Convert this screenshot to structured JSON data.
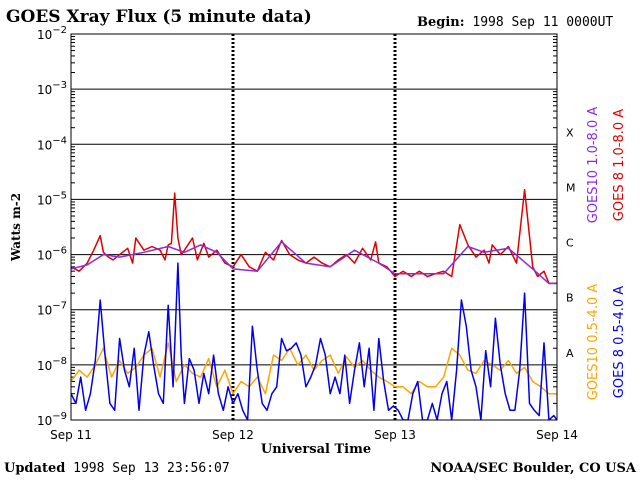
{
  "header": {
    "title": "GOES Xray Flux (5 minute data)",
    "begin_label": "Begin:",
    "begin_value": "1998 Sep 11 0000UT"
  },
  "footer": {
    "updated_label": "Updated",
    "updated_value": "1998 Sep 13 23:56:07",
    "credit": "NOAA/SEC Boulder, CO USA"
  },
  "colors": {
    "goes10_long": "#8a2be2",
    "goes8_long": "#e00000",
    "goes10_short": "#ffa500",
    "goes8_short": "#0000ee"
  },
  "chart_data": {
    "type": "line",
    "ylabel": "Watts m-2",
    "xlabel": "Universal Time",
    "yscale": "log",
    "ylim_exp": [
      -9,
      -2
    ],
    "ytick_exps": [
      -9,
      -8,
      -7,
      -6,
      -5,
      -4,
      -3,
      -2
    ],
    "flare_classes": [
      {
        "label": "A",
        "exp": -8
      },
      {
        "label": "B",
        "exp": -7
      },
      {
        "label": "C",
        "exp": -6
      },
      {
        "label": "M",
        "exp": -5
      },
      {
        "label": "X",
        "exp": -4
      }
    ],
    "x_range_days": [
      0,
      3
    ],
    "xticks": [
      {
        "day": 0,
        "label": "Sep 11"
      },
      {
        "day": 1,
        "label": "Sep 12"
      },
      {
        "day": 2,
        "label": "Sep 13"
      },
      {
        "day": 3,
        "label": "Sep 14"
      }
    ],
    "legend": [
      {
        "label": "GOES10 1.0-8.0 A",
        "color": "#8a2be2"
      },
      {
        "label": "GOES 8 1.0-8.0 A",
        "color": "#e00000"
      },
      {
        "label": "GOES10 0.5-4.0 A",
        "color": "#ffa500"
      },
      {
        "label": "GOES 8 0.5-4.0 A",
        "color": "#0000ee"
      }
    ],
    "series": [
      {
        "name": "GOES 8 1.0-8.0 A",
        "color": "#e00000",
        "x": [
          0,
          0.05,
          0.1,
          0.14,
          0.18,
          0.2,
          0.23,
          0.26,
          0.3,
          0.35,
          0.38,
          0.4,
          0.45,
          0.5,
          0.55,
          0.58,
          0.6,
          0.62,
          0.64,
          0.66,
          0.68,
          0.7,
          0.75,
          0.78,
          0.82,
          0.85,
          0.9,
          0.95,
          1.0,
          1.05,
          1.1,
          1.15,
          1.2,
          1.25,
          1.3,
          1.35,
          1.4,
          1.45,
          1.5,
          1.55,
          1.6,
          1.65,
          1.7,
          1.75,
          1.8,
          1.85,
          1.88,
          1.9,
          1.95,
          2.0,
          2.05,
          2.1,
          2.15,
          2.2,
          2.25,
          2.3,
          2.35,
          2.4,
          2.45,
          2.5,
          2.55,
          2.58,
          2.6,
          2.65,
          2.7,
          2.75,
          2.8,
          2.85,
          2.88,
          2.92,
          2.95,
          3.0
        ],
        "y": [
          6e-07,
          5e-07,
          7e-07,
          1.2e-06,
          2.2e-06,
          1.1e-06,
          9e-07,
          8e-07,
          1e-06,
          1.3e-06,
          7e-07,
          2e-06,
          1.2e-06,
          1.4e-06,
          1.2e-06,
          8e-07,
          1.5e-06,
          1.6e-06,
          1.3e-05,
          2e-06,
          1e-06,
          1.2e-06,
          2e-06,
          8e-07,
          1.6e-06,
          9e-07,
          1.2e-06,
          7e-07,
          6e-07,
          1e-06,
          6e-07,
          5e-07,
          1.1e-06,
          8e-07,
          1.8e-06,
          1e-06,
          8e-07,
          7e-07,
          9e-07,
          7e-07,
          6e-07,
          8e-07,
          1e-06,
          7e-07,
          1.3e-06,
          8e-07,
          1.7e-06,
          7e-07,
          6e-07,
          4e-07,
          5e-07,
          4e-07,
          5e-07,
          4e-07,
          4.5e-07,
          5e-07,
          4e-07,
          3.5e-06,
          1.5e-06,
          9e-07,
          1.2e-06,
          7e-07,
          1.5e-06,
          1e-06,
          1.4e-06,
          7e-07,
          1.5e-05,
          6e-07,
          4e-07,
          5e-07,
          3e-07,
          3e-07
        ]
      },
      {
        "name": "GOES10 1.0-8.0 A",
        "color": "#8a2be2",
        "x": [
          0,
          0.1,
          0.2,
          0.3,
          0.45,
          0.6,
          0.7,
          0.8,
          0.9,
          1.0,
          1.15,
          1.3,
          1.45,
          1.6,
          1.75,
          1.9,
          2.0,
          2.15,
          2.3,
          2.45,
          2.55,
          2.7,
          2.85,
          2.95,
          3.0
        ],
        "y": [
          5.5e-07,
          6.5e-07,
          1e-06,
          9e-07,
          1.1e-06,
          1.4e-06,
          1.1e-06,
          1.5e-06,
          1.1e-06,
          5.5e-07,
          5e-07,
          1.7e-06,
          7e-07,
          6e-07,
          1.2e-06,
          7e-07,
          4.5e-07,
          4.5e-07,
          4.5e-07,
          1.4e-06,
          1.1e-06,
          1.3e-06,
          5.5e-07,
          3e-07,
          3e-07
        ]
      },
      {
        "name": "GOES10 0.5-4.0 A",
        "color": "#ffa500",
        "x": [
          0,
          0.05,
          0.1,
          0.15,
          0.2,
          0.25,
          0.3,
          0.35,
          0.4,
          0.45,
          0.5,
          0.55,
          0.6,
          0.65,
          0.7,
          0.75,
          0.8,
          0.85,
          0.9,
          0.95,
          1.0,
          1.05,
          1.1,
          1.15,
          1.2,
          1.25,
          1.3,
          1.35,
          1.4,
          1.45,
          1.5,
          1.55,
          1.6,
          1.65,
          1.7,
          1.75,
          1.8,
          1.85,
          1.9,
          1.95,
          2.0,
          2.05,
          2.1,
          2.15,
          2.2,
          2.25,
          2.3,
          2.35,
          2.4,
          2.45,
          2.5,
          2.55,
          2.6,
          2.65,
          2.7,
          2.75,
          2.8,
          2.85,
          2.9,
          2.95,
          3.0
        ],
        "y": [
          5e-09,
          8e-09,
          6e-09,
          1e-08,
          2e-08,
          6e-09,
          1.2e-08,
          7e-09,
          9e-09,
          1.5e-08,
          2e-08,
          6e-09,
          2.5e-08,
          5e-09,
          1e-08,
          7e-09,
          6e-09,
          1.3e-08,
          4e-09,
          8e-09,
          3e-09,
          5e-09,
          4e-09,
          6e-09,
          3e-09,
          1.5e-08,
          1.2e-08,
          2e-08,
          1e-08,
          1.5e-08,
          8e-09,
          1.2e-08,
          1.5e-08,
          7e-09,
          1.4e-08,
          9e-09,
          1.2e-08,
          8e-09,
          6e-09,
          5e-09,
          4e-09,
          4e-09,
          3e-09,
          5e-09,
          4e-09,
          4e-09,
          6e-09,
          2e-08,
          1.5e-08,
          8e-09,
          7e-09,
          1.2e-08,
          1e-08,
          8e-09,
          1.2e-08,
          7e-09,
          9e-09,
          5e-09,
          4e-09,
          3e-09,
          3e-09
        ]
      },
      {
        "name": "GOES 8 0.5-4.0 A",
        "color": "#0000ee",
        "x": [
          0,
          0.03,
          0.06,
          0.09,
          0.12,
          0.15,
          0.18,
          0.21,
          0.24,
          0.27,
          0.3,
          0.33,
          0.36,
          0.39,
          0.42,
          0.45,
          0.48,
          0.51,
          0.54,
          0.57,
          0.6,
          0.63,
          0.66,
          0.68,
          0.7,
          0.73,
          0.76,
          0.79,
          0.82,
          0.85,
          0.88,
          0.91,
          0.94,
          0.97,
          1.0,
          1.03,
          1.06,
          1.09,
          1.12,
          1.15,
          1.18,
          1.21,
          1.24,
          1.27,
          1.3,
          1.33,
          1.36,
          1.39,
          1.42,
          1.45,
          1.48,
          1.51,
          1.54,
          1.57,
          1.6,
          1.63,
          1.66,
          1.69,
          1.72,
          1.75,
          1.78,
          1.81,
          1.84,
          1.87,
          1.9,
          1.93,
          1.96,
          1.99,
          2.02,
          2.05,
          2.08,
          2.11,
          2.14,
          2.17,
          2.2,
          2.23,
          2.26,
          2.29,
          2.32,
          2.35,
          2.38,
          2.41,
          2.44,
          2.47,
          2.5,
          2.53,
          2.56,
          2.59,
          2.62,
          2.65,
          2.68,
          2.71,
          2.74,
          2.77,
          2.8,
          2.83,
          2.86,
          2.89,
          2.92,
          2.95,
          2.98,
          3.0
        ],
        "y": [
          3e-09,
          2e-09,
          6e-09,
          1.5e-09,
          3e-09,
          1.2e-08,
          1.5e-07,
          1.5e-08,
          2e-09,
          1.5e-09,
          3e-08,
          8e-09,
          4e-09,
          2e-08,
          1.5e-09,
          1.5e-08,
          4e-08,
          1e-08,
          3e-09,
          2e-09,
          1.2e-07,
          4e-09,
          7e-07,
          1.5e-08,
          2e-09,
          1.3e-08,
          8e-09,
          2e-09,
          7e-09,
          3e-09,
          1.5e-08,
          3e-09,
          1.5e-09,
          4e-09,
          2e-09,
          3e-09,
          1.5e-09,
          1e-09,
          5e-08,
          8e-09,
          2e-09,
          1.5e-09,
          3e-09,
          4e-09,
          3e-08,
          1.8e-08,
          2e-08,
          2.5e-08,
          1.5e-08,
          4e-09,
          6e-09,
          1e-08,
          3e-08,
          1.5e-08,
          3e-09,
          6e-09,
          3e-09,
          1.5e-08,
          2e-09,
          8e-09,
          2.5e-08,
          4e-09,
          2e-08,
          1.5e-09,
          3e-08,
          5e-09,
          1.5e-09,
          1.8e-09,
          1.5e-09,
          1e-09,
          1e-09,
          3e-09,
          5e-09,
          1e-09,
          1e-09,
          2e-09,
          1e-09,
          3e-09,
          5e-09,
          1e-09,
          8e-09,
          1.5e-07,
          5e-08,
          8e-09,
          4e-09,
          1e-09,
          1.8e-08,
          4e-09,
          7e-08,
          1e-08,
          3e-09,
          1.5e-09,
          1.5e-09,
          8e-09,
          2e-07,
          2e-09,
          1.5e-09,
          1.2e-09,
          2.5e-08,
          1e-09,
          1.2e-09,
          1e-09
        ]
      }
    ]
  }
}
